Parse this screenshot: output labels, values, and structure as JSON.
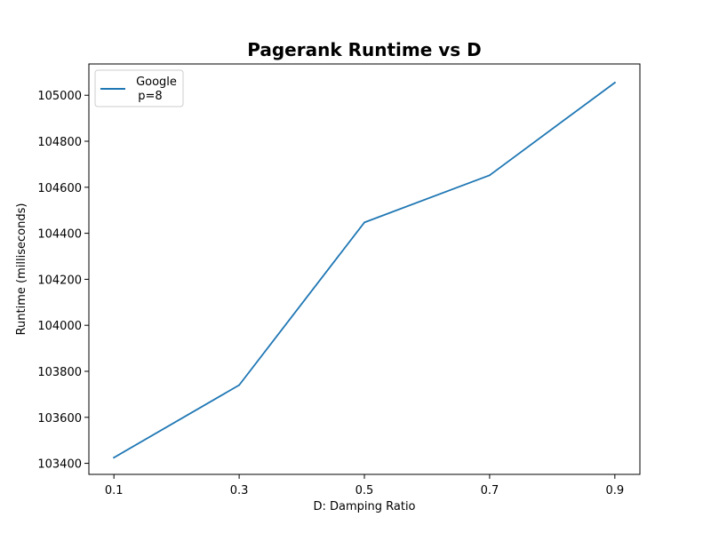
{
  "chart_data": {
    "type": "line",
    "title": "Pagerank Runtime vs D",
    "xlabel": "D: Damping Ratio",
    "ylabel": "Runtime (milliseconds)",
    "x": [
      0.1,
      0.3,
      0.5,
      0.7,
      0.9
    ],
    "x_tick_labels": [
      "0.1",
      "0.3",
      "0.5",
      "0.7",
      "0.9"
    ],
    "y_ticks": [
      103400,
      103600,
      103800,
      104000,
      104200,
      104400,
      104600,
      104800,
      105000
    ],
    "y_tick_labels": [
      "103400",
      "103600",
      "103800",
      "104000",
      "104200",
      "104400",
      "104600",
      "104800",
      "105000"
    ],
    "xlim": [
      0.06,
      0.94
    ],
    "ylim": [
      103352,
      105136
    ],
    "grid": false,
    "legend_position": "upper-left",
    "series": [
      {
        "name_lines": [
          "Google",
          "p=8"
        ],
        "color": "#1f77b4",
        "values": [
          103425,
          103740,
          104447,
          104652,
          105055
        ]
      }
    ]
  }
}
